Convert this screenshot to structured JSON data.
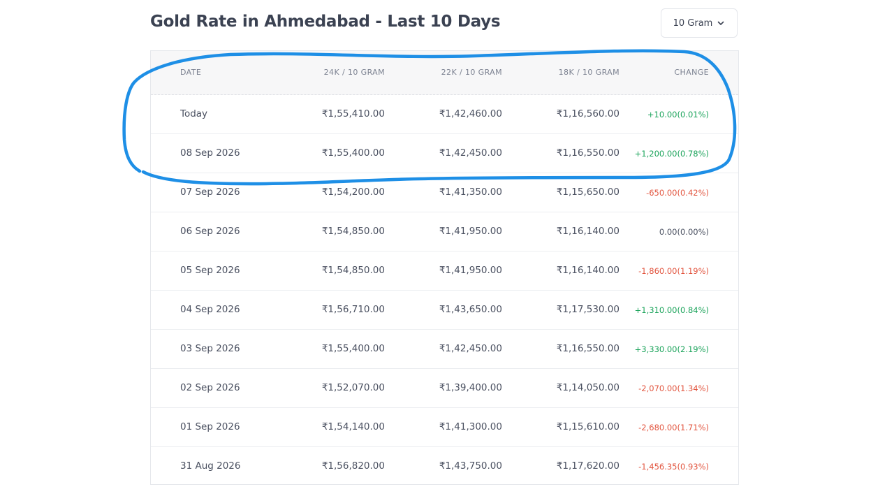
{
  "header": {
    "title": "Gold Rate in Ahmedabad - Last 10 Days",
    "unit_select": {
      "selected": "10 Gram",
      "icon": "chevron-down-icon"
    }
  },
  "table": {
    "columns": [
      "DATE",
      "24K / 10 GRAM",
      "22K / 10 GRAM",
      "18K / 10 GRAM",
      "CHANGE"
    ],
    "rows": [
      {
        "date": "Today",
        "k24": "₹1,55,410.00",
        "k22": "₹1,42,460.00",
        "k18": "₹1,16,560.00",
        "change": "+10.00(0.01%)",
        "direction": "up"
      },
      {
        "date": "08 Sep 2026",
        "k24": "₹1,55,400.00",
        "k22": "₹1,42,450.00",
        "k18": "₹1,16,550.00",
        "change": "+1,200.00(0.78%)",
        "direction": "up"
      },
      {
        "date": "07 Sep 2026",
        "k24": "₹1,54,200.00",
        "k22": "₹1,41,350.00",
        "k18": "₹1,15,650.00",
        "change": "-650.00(0.42%)",
        "direction": "down"
      },
      {
        "date": "06 Sep 2026",
        "k24": "₹1,54,850.00",
        "k22": "₹1,41,950.00",
        "k18": "₹1,16,140.00",
        "change": "0.00(0.00%)",
        "direction": "flat"
      },
      {
        "date": "05 Sep 2026",
        "k24": "₹1,54,850.00",
        "k22": "₹1,41,950.00",
        "k18": "₹1,16,140.00",
        "change": "-1,860.00(1.19%)",
        "direction": "down"
      },
      {
        "date": "04 Sep 2026",
        "k24": "₹1,56,710.00",
        "k22": "₹1,43,650.00",
        "k18": "₹1,17,530.00",
        "change": "+1,310.00(0.84%)",
        "direction": "up"
      },
      {
        "date": "03 Sep 2026",
        "k24": "₹1,55,400.00",
        "k22": "₹1,42,450.00",
        "k18": "₹1,16,550.00",
        "change": "+3,330.00(2.19%)",
        "direction": "up"
      },
      {
        "date": "02 Sep 2026",
        "k24": "₹1,52,070.00",
        "k22": "₹1,39,400.00",
        "k18": "₹1,14,050.00",
        "change": "-2,070.00(1.34%)",
        "direction": "down"
      },
      {
        "date": "01 Sep 2026",
        "k24": "₹1,54,140.00",
        "k22": "₹1,41,300.00",
        "k18": "₹1,15,610.00",
        "change": "-2,680.00(1.71%)",
        "direction": "down"
      },
      {
        "date": "31 Aug 2026",
        "k24": "₹1,56,820.00",
        "k22": "₹1,43,750.00",
        "k18": "₹1,17,620.00",
        "change": "-1,456.35(0.93%)",
        "direction": "down"
      }
    ]
  },
  "colors": {
    "positive": "#1aa35a",
    "negative": "#e2553f",
    "annotation_stroke": "#1e8fe6"
  }
}
